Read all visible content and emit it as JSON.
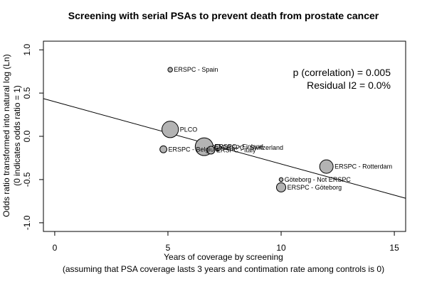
{
  "chart_data": {
    "type": "scatter",
    "title": "Screening with serial PSAs to prevent death from prostate cancer",
    "xlabel": "Years of coverage by screening",
    "xlabel_sub": "(assuming that PSA coverage lasts 3 years and contimation rate among controls is 0)",
    "ylabel": "Odds ratio transformed into natural log (Ln)",
    "ylabel_sub": "(0 indicates odds ratio = 1)",
    "xlim": [
      -0.5,
      15.5
    ],
    "ylim": [
      -1.1,
      1.1
    ],
    "xticks": [
      0,
      5,
      10,
      15
    ],
    "yticks": [
      -1.0,
      -0.5,
      0.0,
      0.5,
      1.0
    ],
    "xtick_labels": [
      "0",
      "5",
      "10",
      "15"
    ],
    "ytick_labels": [
      "-1.0",
      "-0.5",
      "0.0",
      "0.5",
      "1.0"
    ],
    "grid": false,
    "regression_line": {
      "intercept": 0.4,
      "slope": -0.072
    },
    "annotations": {
      "p_correlation": "p (correlation) = 0.005",
      "residual_i2": "Residual I2 = 0.0%"
    },
    "points": [
      {
        "label": "ERSPC - Spain",
        "x": 5.1,
        "y": 0.77,
        "weight": 0.5
      },
      {
        "label": "PLCO",
        "x": 5.1,
        "y": 0.08,
        "weight": 11
      },
      {
        "label": "ERSPC - Belgium",
        "x": 4.8,
        "y": -0.15,
        "weight": 1.5
      },
      {
        "label": "ERSPC - Finland",
        "x": 6.6,
        "y": -0.12,
        "weight": 13
      },
      {
        "label": "ERSPC - Italy",
        "x": 6.9,
        "y": -0.16,
        "weight": 2
      },
      {
        "label": "ERSPC - Switzerland",
        "x": 7.2,
        "y": -0.13,
        "weight": 1.2
      },
      {
        "label": "ERSPC - Rotterdam",
        "x": 12.0,
        "y": -0.35,
        "weight": 7
      },
      {
        "label": "Göteborg - Not ERSPC",
        "x": 10.0,
        "y": -0.5,
        "weight": 0.3
      },
      {
        "label": "ERSPC - Göteborg",
        "x": 10.0,
        "y": -0.59,
        "weight": 3
      }
    ]
  }
}
